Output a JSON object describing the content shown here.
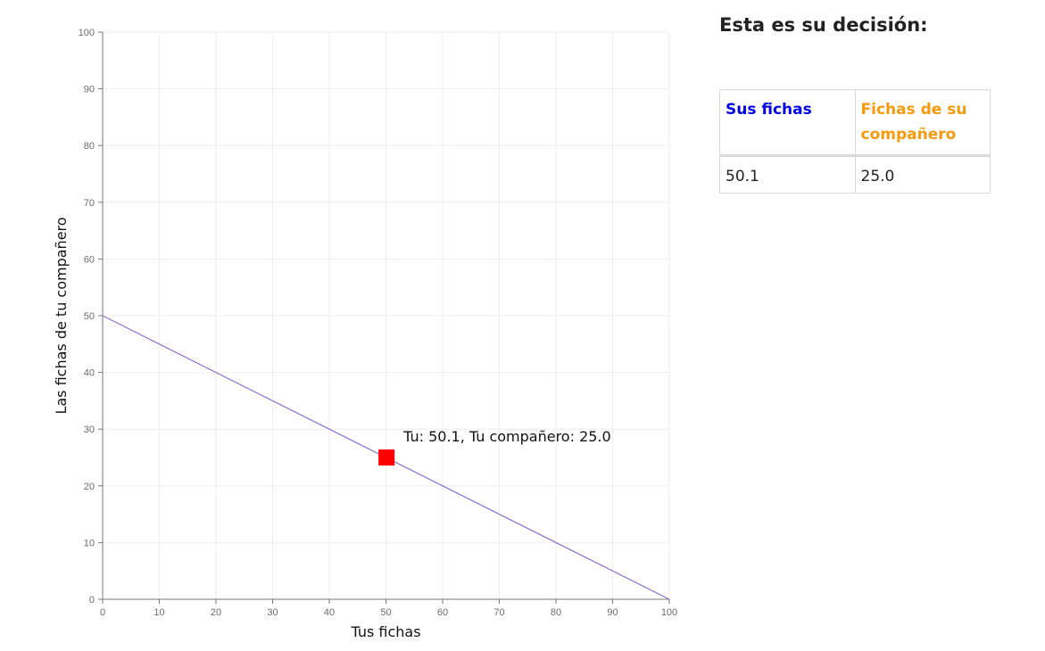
{
  "chart_data": {
    "type": "line",
    "xlabel": "Tus fichas",
    "ylabel": "Las fichas de tu compañero",
    "xlim": [
      0,
      100
    ],
    "ylim": [
      0,
      100
    ],
    "xticks": [
      0,
      10,
      20,
      30,
      40,
      50,
      60,
      70,
      80,
      90,
      100
    ],
    "yticks": [
      0,
      10,
      20,
      30,
      40,
      50,
      60,
      70,
      80,
      90,
      100
    ],
    "grid": true,
    "series": [
      {
        "type": "line",
        "color": "#8a6fd1",
        "points": [
          [
            0,
            50
          ],
          [
            100,
            0
          ]
        ]
      }
    ],
    "marker": {
      "x": 50.1,
      "y": 25.0,
      "shape": "square",
      "color": "#ff0000"
    },
    "annotation": {
      "text": "Tu: 50.1, Tu compañero: 25.0",
      "x": 50.1,
      "y": 25.0
    }
  },
  "side_panel": {
    "title": "Esta es su decisión:",
    "table": {
      "header_own": "Sus fichas",
      "header_partner": "Fichas de su compañero",
      "value_own": "50.1",
      "value_partner": "25.0",
      "color_own": "#0000e6",
      "color_partner": "#f59a0c"
    }
  }
}
